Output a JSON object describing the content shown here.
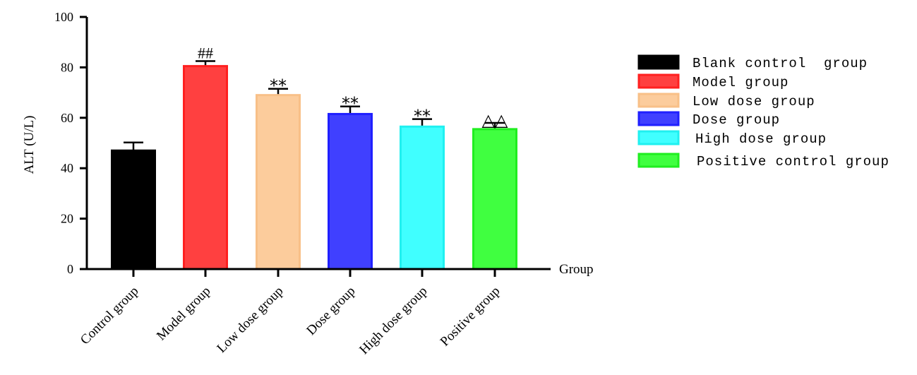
{
  "chart_data": {
    "type": "bar",
    "ylabel": "ALT (U/L)",
    "xlabel": "Group",
    "ylim": [
      0,
      100
    ],
    "yticks": [
      0,
      20,
      40,
      60,
      80,
      100
    ],
    "categories": [
      "Control group",
      "Model group",
      "Low dose group",
      "Dose group",
      "High dose group",
      "Positive group"
    ],
    "values": [
      47,
      80.5,
      69,
      61.5,
      56.5,
      55.5
    ],
    "errors": [
      3.2,
      2,
      2.5,
      3,
      3,
      2.5
    ],
    "annotations": [
      "",
      "##",
      "**",
      "**",
      "**",
      "△△"
    ],
    "colors": [
      "#000000",
      "#ff4040",
      "#fccc9c",
      "#4040ff",
      "#40ffff",
      "#40ff40"
    ],
    "edge_colors": [
      "#000000",
      "#ff2020",
      "#f8c088",
      "#2020ff",
      "#20f0f0",
      "#20ee20"
    ],
    "legend": {
      "position": "right",
      "entries": [
        "Blank control  group",
        "Model group",
        "Low dose group",
        "Dose group",
        "High dose group",
        "Positive control group"
      ]
    },
    "grid": false
  }
}
